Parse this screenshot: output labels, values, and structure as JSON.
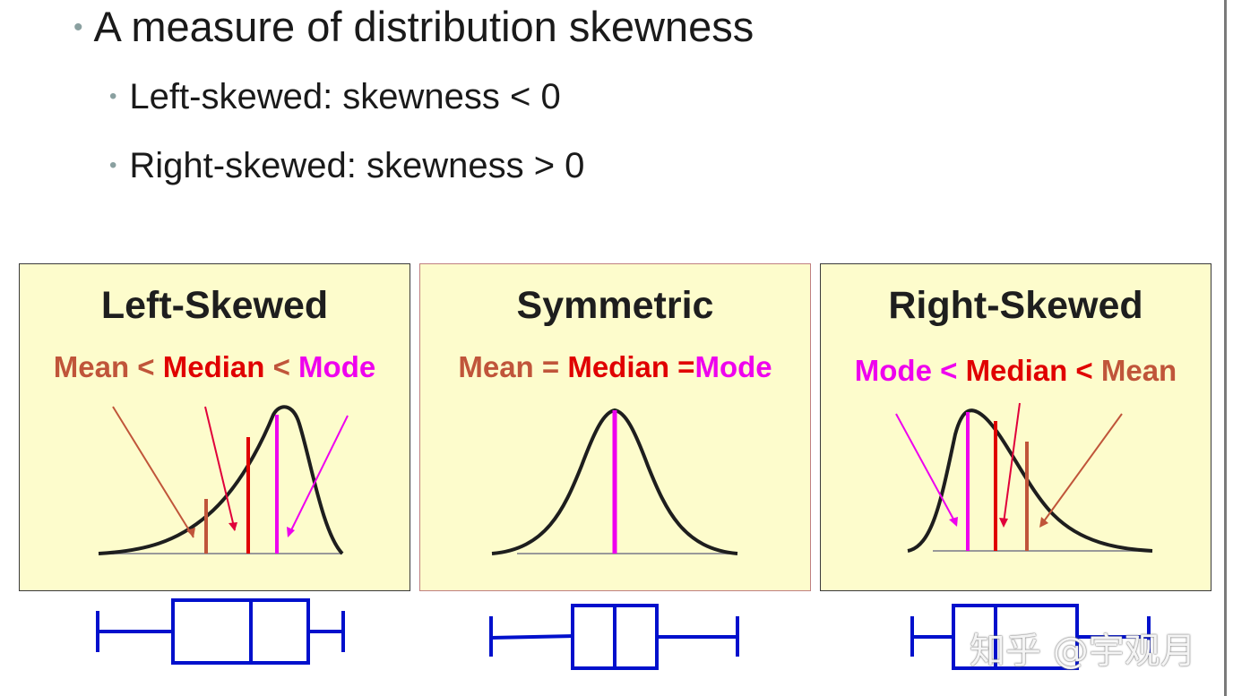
{
  "bullets": {
    "main": "A measure of distribution skewness",
    "sub1": "Left-skewed: skewness < 0",
    "sub2": "Right-skewed: skewness > 0",
    "bullet_char": "•"
  },
  "panels": [
    {
      "title": "Left-Skewed",
      "relation": [
        {
          "text": "Mean",
          "role": "mean"
        },
        {
          "text": " < ",
          "role": "mean"
        },
        {
          "text": "Median",
          "role": "median"
        },
        {
          "text": " < ",
          "role": "mean"
        },
        {
          "text": "Mode",
          "role": "mode"
        }
      ]
    },
    {
      "title": "Symmetric",
      "relation": [
        {
          "text": "Mean",
          "role": "mean"
        },
        {
          "text": " = ",
          "role": "mean"
        },
        {
          "text": "Median",
          "role": "median"
        },
        {
          "text": " =",
          "role": "median"
        },
        {
          "text": "Mode",
          "role": "mode"
        }
      ]
    },
    {
      "title": "Right-Skewed",
      "relation": [
        {
          "text": "Mode",
          "role": "mode"
        },
        {
          "text": " < ",
          "role": "mode"
        },
        {
          "text": "Median",
          "role": "median"
        },
        {
          "text": " < ",
          "role": "median"
        },
        {
          "text": "Mean",
          "role": "mean"
        }
      ]
    }
  ],
  "colors": {
    "panel_bg": "#fdfccc",
    "mean": "#c0553a",
    "median": "#e00000",
    "mode": "#ee00ee",
    "box_plot": "#0010cc",
    "curve": "#1e1e1e"
  },
  "watermark": "知乎 @宇观月"
}
